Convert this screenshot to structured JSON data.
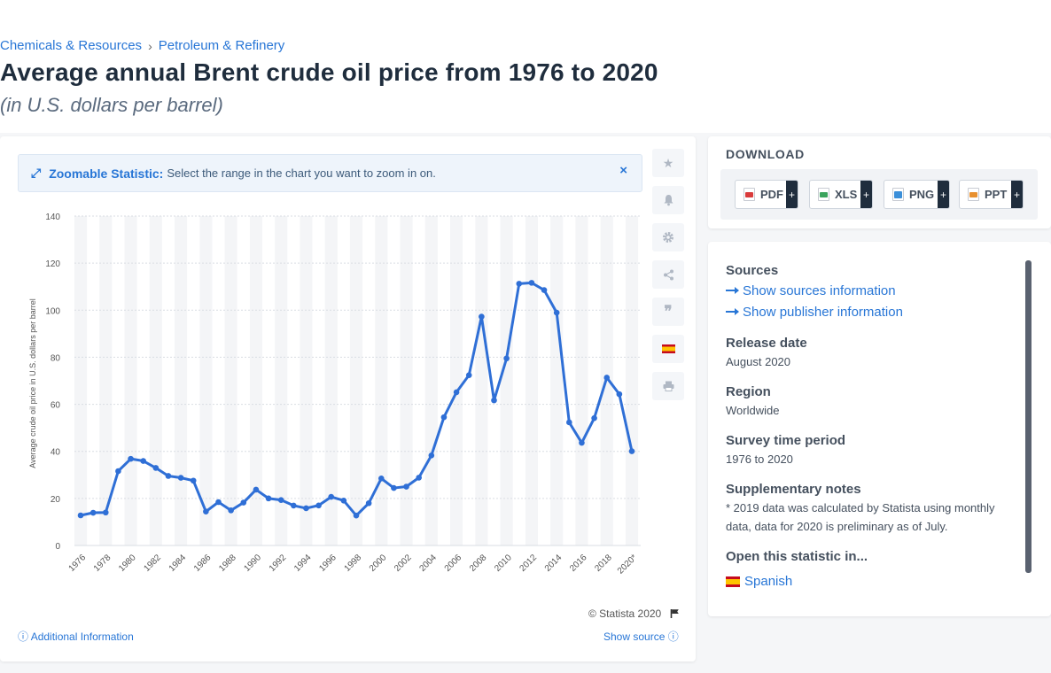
{
  "breadcrumb": {
    "items": [
      "Chemicals & Resources",
      "Petroleum & Refinery"
    ],
    "separator": "›"
  },
  "title": "Average annual Brent crude oil price from 1976 to 2020",
  "subtitle": "(in U.S. dollars per barrel)",
  "zoom_notice": {
    "label": "Zoomable Statistic:",
    "text": "Select the range in the chart you want to zoom in on.",
    "close_symbol": "×"
  },
  "side_tools": [
    "star-icon",
    "bell-icon",
    "gear-icon",
    "share-icon",
    "quote-icon",
    "spanish-flag-icon",
    "print-icon"
  ],
  "chart_data": {
    "type": "line",
    "ylabel": "Average crude oil price in U.S. dollars per barrel",
    "xlabel": "",
    "ylim": [
      0,
      140
    ],
    "yticks": [
      0,
      20,
      40,
      60,
      80,
      100,
      120,
      140
    ],
    "x": [
      "1976",
      "1977",
      "1978",
      "1979",
      "1980",
      "1981",
      "1982",
      "1983",
      "1984",
      "1985",
      "1986",
      "1987",
      "1988",
      "1989",
      "1990",
      "1991",
      "1992",
      "1993",
      "1994",
      "1995",
      "1996",
      "1997",
      "1998",
      "1999",
      "2000",
      "2001",
      "2002",
      "2003",
      "2004",
      "2005",
      "2006",
      "2007",
      "2008",
      "2009",
      "2010",
      "2011",
      "2012",
      "2013",
      "2014",
      "2015",
      "2016",
      "2017",
      "2018",
      "2019",
      "2020*"
    ],
    "x_tick_labels": [
      "1976",
      "1978",
      "1980",
      "1982",
      "1984",
      "1986",
      "1988",
      "1990",
      "1992",
      "1994",
      "1996",
      "1998",
      "2000",
      "2002",
      "2004",
      "2006",
      "2008",
      "2010",
      "2012",
      "2014",
      "2016",
      "2018",
      "2020*"
    ],
    "values": [
      12.8,
      13.92,
      14.02,
      31.61,
      36.83,
      35.93,
      32.97,
      29.55,
      28.78,
      27.56,
      14.43,
      18.44,
      14.92,
      18.23,
      23.73,
      20.0,
      19.32,
      16.97,
      15.82,
      17.02,
      20.67,
      19.09,
      12.72,
      17.97,
      28.5,
      24.44,
      25.02,
      28.83,
      38.27,
      54.52,
      65.14,
      72.39,
      97.26,
      61.67,
      79.5,
      111.26,
      111.63,
      108.56,
      98.97,
      52.32,
      43.64,
      54.13,
      71.34,
      64.3,
      40.07
    ],
    "color": "#2f6fd6",
    "grid": true,
    "legend": "none"
  },
  "copyright": "© Statista 2020",
  "additional_info": "Additional Information",
  "show_source": "Show source",
  "download": {
    "title": "DOWNLOAD",
    "buttons": [
      {
        "label": "PDF",
        "plus": "+"
      },
      {
        "label": "XLS",
        "plus": "+"
      },
      {
        "label": "PNG",
        "plus": "+"
      },
      {
        "label": "PPT",
        "plus": "+"
      }
    ]
  },
  "info": {
    "sources_heading": "Sources",
    "show_sources": "Show sources information",
    "show_publisher": "Show publisher information",
    "release_heading": "Release date",
    "release_value": "August 2020",
    "region_heading": "Region",
    "region_value": "Worldwide",
    "survey_heading": "Survey time period",
    "survey_value": "1976 to 2020",
    "supp_heading": "Supplementary notes",
    "supp_value": "* 2019 data was calculated by Statista using monthly data, data for 2020 is preliminary as of July.",
    "open_heading": "Open this statistic in...",
    "open_language": "Spanish"
  }
}
